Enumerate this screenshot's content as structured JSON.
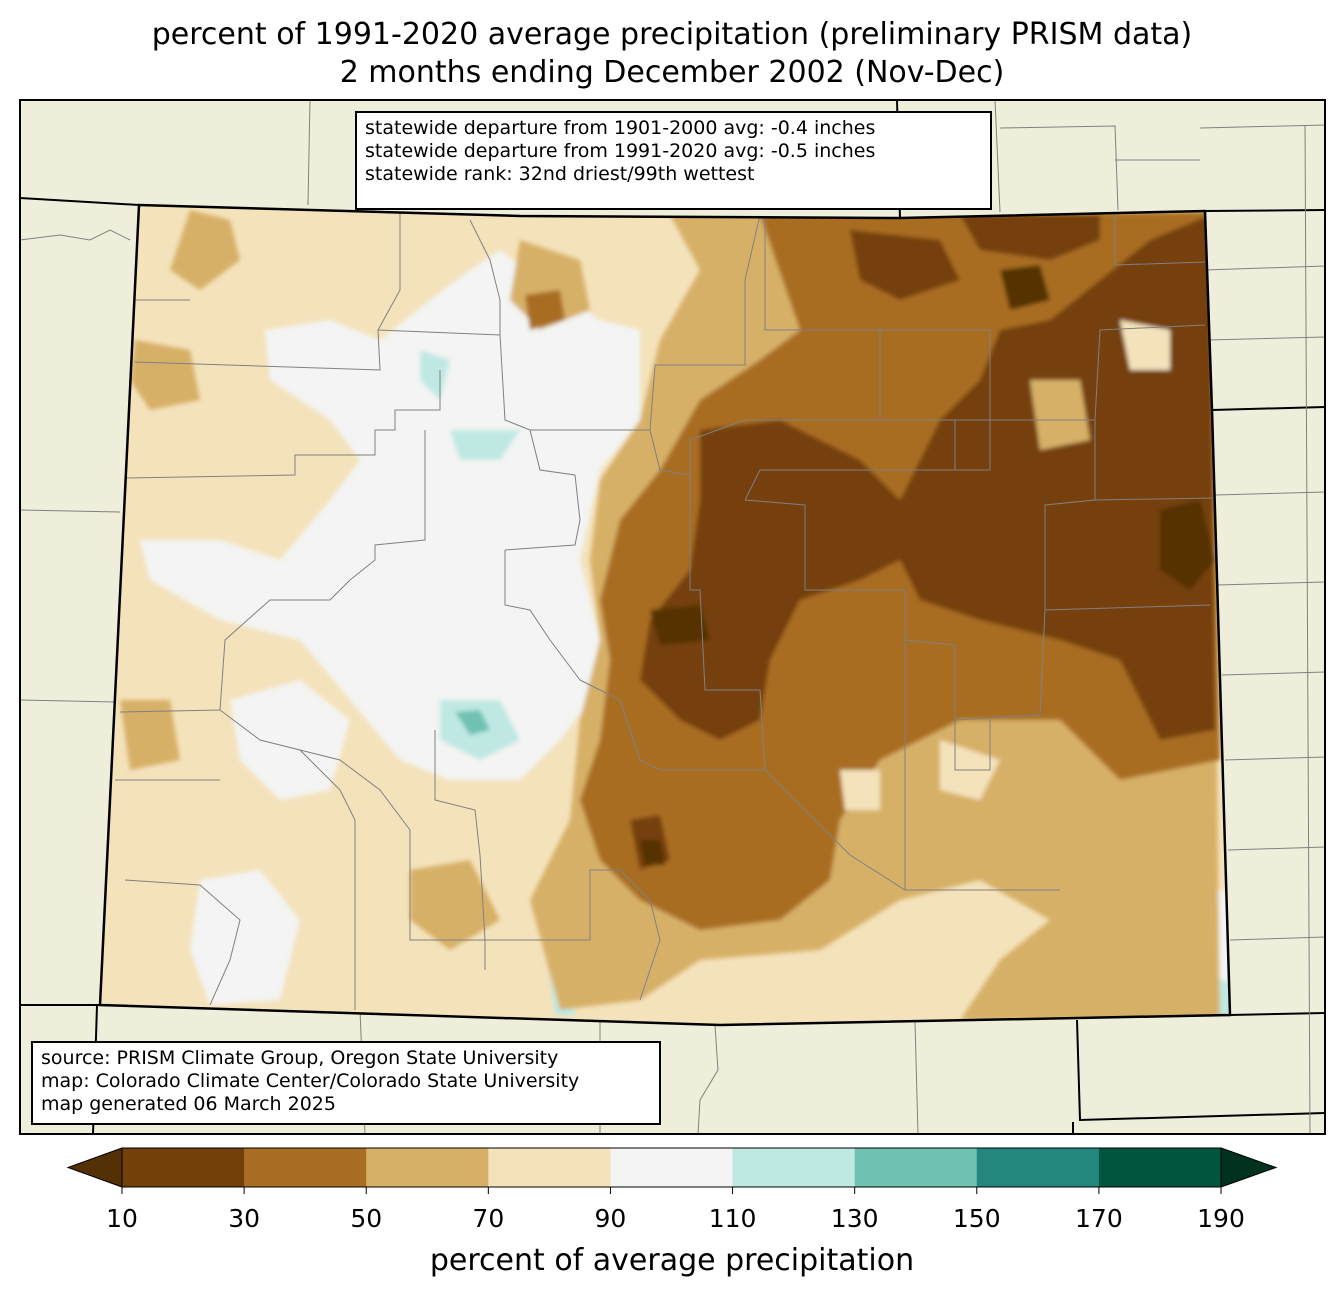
{
  "title": {
    "line1": "percent of 1991-2020 average precipitation (preliminary PRISM data)",
    "line2": "2 months ending December 2002 (Nov-Dec)"
  },
  "stats_box": {
    "line1": "statewide departure from 1901-2000 avg: -0.4 inches",
    "line2": "statewide departure from 1991-2020 avg: -0.5 inches",
    "line3": "statewide rank: 32nd driest/99th wettest"
  },
  "source_box": {
    "line1": "source: PRISM Climate Group, Oregon State University",
    "line2": "map: Colorado Climate Center/Colorado State University",
    "line3": "map generated 06 March 2025"
  },
  "colorbar": {
    "label": "percent of average precipitation",
    "ticks": [
      "10",
      "30",
      "50",
      "70",
      "90",
      "110",
      "130",
      "150",
      "170",
      "190"
    ],
    "colors": [
      "#543005",
      "#74400a",
      "#a96d23",
      "#d7b068",
      "#f4e2bb",
      "#f3f4f3",
      "#bfe8e3",
      "#6fc1b2",
      "#23877f",
      "#01543d",
      "#00321f"
    ]
  },
  "map_colors": {
    "background": "#efeedb",
    "state_outline": "#000000",
    "county_lines": "#808080"
  }
}
